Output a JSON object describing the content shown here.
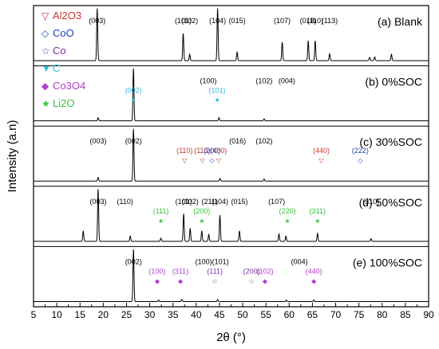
{
  "chart_data": {
    "type": "line",
    "xlabel": "2θ (°)",
    "ylabel": "Intensity (a.n)",
    "xlim": [
      5,
      90
    ],
    "x_ticks": [
      5,
      10,
      15,
      20,
      25,
      30,
      35,
      40,
      45,
      50,
      55,
      60,
      65,
      70,
      75,
      80,
      85,
      90
    ],
    "y_ticks": "none",
    "grid": false,
    "legend": {
      "placement": "top-left, stacked across panels (a)-(c)",
      "entries": [
        {
          "symbol": "▽",
          "label": "Al2O3",
          "color": "#c0392b"
        },
        {
          "symbol": "◇",
          "label": "CoO",
          "color": "#1f3fbf"
        },
        {
          "symbol": "☆",
          "label": "Co",
          "color": "#7b2fa5"
        },
        {
          "symbol": "▼",
          "label": "C",
          "color": "#33b7e6"
        },
        {
          "symbol": "◆",
          "label": "Co3O4",
          "color": "#b03fc8"
        },
        {
          "symbol": "★",
          "label": "Li2O",
          "color": "#39c23a"
        }
      ]
    },
    "series": [
      {
        "name": "(a) Blank",
        "peaks": [
          {
            "x": 18.7,
            "h": 1.0
          },
          {
            "x": 37.2,
            "h": 0.52
          },
          {
            "x": 38.6,
            "h": 0.12
          },
          {
            "x": 44.6,
            "h": 1.0
          },
          {
            "x": 48.8,
            "h": 0.16
          },
          {
            "x": 58.5,
            "h": 0.35
          },
          {
            "x": 64.1,
            "h": 0.38
          },
          {
            "x": 65.6,
            "h": 0.38
          },
          {
            "x": 68.7,
            "h": 0.13
          },
          {
            "x": 77.3,
            "h": 0.06
          },
          {
            "x": 78.4,
            "h": 0.07
          },
          {
            "x": 82.0,
            "h": 0.12
          }
        ],
        "annotations": [
          {
            "x": 18.7,
            "text": "(003)"
          },
          {
            "x": 37.2,
            "text": "(101)"
          },
          {
            "x": 38.6,
            "text": "(102)"
          },
          {
            "x": 44.6,
            "text": "(104)"
          },
          {
            "x": 48.8,
            "text": "(015)"
          },
          {
            "x": 58.5,
            "text": "(107)"
          },
          {
            "x": 64.1,
            "text": "(018)"
          },
          {
            "x": 65.6,
            "text": "(110)"
          },
          {
            "x": 68.7,
            "text": "(113)"
          }
        ]
      },
      {
        "name": "(b) 0%SOC",
        "peaks": [
          {
            "x": 18.9,
            "h": 0.06
          },
          {
            "x": 26.5,
            "h": 1.0
          },
          {
            "x": 44.9,
            "h": 0.06
          },
          {
            "x": 54.6,
            "h": 0.04
          }
        ],
        "annotations": [
          {
            "x": 26.5,
            "text": "(002)",
            "marker": "C"
          },
          {
            "x": 44.5,
            "text": "(101)",
            "marker": "C"
          },
          {
            "x": 42.6,
            "text": "(100)"
          },
          {
            "x": 54.6,
            "text": "(102)"
          },
          {
            "x": 59.5,
            "text": "(004)"
          }
        ]
      },
      {
        "name": "(c) 30%SOC",
        "peaks": [
          {
            "x": 18.9,
            "h": 0.07
          },
          {
            "x": 26.5,
            "h": 1.0
          },
          {
            "x": 45.1,
            "h": 0.05
          },
          {
            "x": 54.6,
            "h": 0.04
          }
        ],
        "annotations": [
          {
            "x": 18.9,
            "text": "(003)"
          },
          {
            "x": 26.5,
            "text": "(002)"
          },
          {
            "x": 37.5,
            "text": "(110)",
            "marker": "Al2O3"
          },
          {
            "x": 41.3,
            "text": "(113)",
            "marker": "Al2O3"
          },
          {
            "x": 44.8,
            "text": "(400)",
            "marker": "Al2O3"
          },
          {
            "x": 43.4,
            "text": "(200)",
            "marker": "CoO"
          },
          {
            "x": 48.9,
            "text": "(016)"
          },
          {
            "x": 54.6,
            "text": "(102)"
          },
          {
            "x": 66.9,
            "text": "(440)",
            "marker": "Al2O3"
          },
          {
            "x": 75.3,
            "text": "(222)",
            "marker": "CoO"
          }
        ]
      },
      {
        "name": "(d) 50%SOC",
        "peaks": [
          {
            "x": 15.7,
            "h": 0.2
          },
          {
            "x": 18.9,
            "h": 1.0
          },
          {
            "x": 25.8,
            "h": 0.1
          },
          {
            "x": 32.4,
            "h": 0.06
          },
          {
            "x": 37.3,
            "h": 0.53
          },
          {
            "x": 38.7,
            "h": 0.25
          },
          {
            "x": 41.2,
            "h": 0.2
          },
          {
            "x": 42.7,
            "h": 0.13
          },
          {
            "x": 45.1,
            "h": 0.5
          },
          {
            "x": 49.3,
            "h": 0.2
          },
          {
            "x": 57.8,
            "h": 0.14
          },
          {
            "x": 59.3,
            "h": 0.1
          },
          {
            "x": 66.1,
            "h": 0.15
          },
          {
            "x": 77.6,
            "h": 0.05
          }
        ],
        "annotations": [
          {
            "x": 18.9,
            "text": "(003)"
          },
          {
            "x": 24.7,
            "text": "(110)"
          },
          {
            "x": 32.4,
            "text": "(111)",
            "marker": "Li2O"
          },
          {
            "x": 37.3,
            "text": "(101)"
          },
          {
            "x": 38.7,
            "text": "(102)"
          },
          {
            "x": 41.2,
            "text": "(200)",
            "marker": "Li2O"
          },
          {
            "x": 42.9,
            "text": "(211)"
          },
          {
            "x": 45.1,
            "text": "(104)"
          },
          {
            "x": 49.3,
            "text": "(015)"
          },
          {
            "x": 57.3,
            "text": "(107)"
          },
          {
            "x": 59.6,
            "text": "(220)",
            "marker": "Li2O"
          },
          {
            "x": 66.1,
            "text": "(311)",
            "marker": "Li2O"
          },
          {
            "x": 77.6,
            "text": "(310)"
          }
        ]
      },
      {
        "name": "(e) 100%SOC",
        "peaks": [
          {
            "x": 26.5,
            "h": 1.0
          },
          {
            "x": 31.9,
            "h": 0.03
          },
          {
            "x": 36.9,
            "h": 0.04
          },
          {
            "x": 44.6,
            "h": 0.04
          },
          {
            "x": 59.4,
            "h": 0.03
          },
          {
            "x": 65.3,
            "h": 0.03
          }
        ],
        "annotations": [
          {
            "x": 26.5,
            "text": "(002)"
          },
          {
            "x": 31.6,
            "text": "(100)",
            "marker": "Co3O4"
          },
          {
            "x": 36.6,
            "text": "(311)",
            "marker": "Co3O4"
          },
          {
            "x": 44.0,
            "text": "(111)",
            "marker": "Co"
          },
          {
            "x": 41.6,
            "text": "(100)"
          },
          {
            "x": 45.2,
            "text": "(101)"
          },
          {
            "x": 51.9,
            "text": "(200)",
            "marker": "Co"
          },
          {
            "x": 54.8,
            "text": "(102)",
            "marker": "Co3O4"
          },
          {
            "x": 62.2,
            "text": "(004)"
          },
          {
            "x": 65.3,
            "text": "(440)",
            "marker": "Co3O4"
          }
        ]
      }
    ]
  }
}
